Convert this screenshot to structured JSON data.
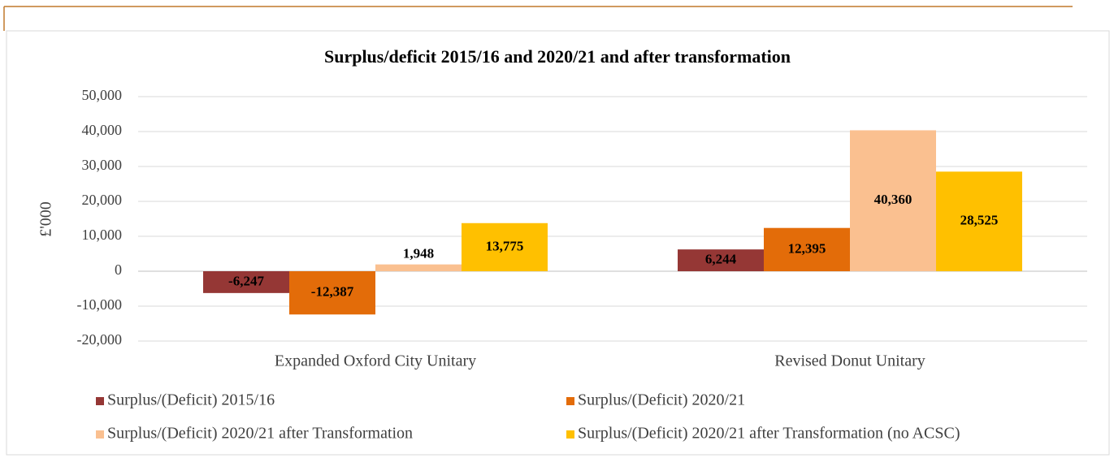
{
  "chart_data": {
    "type": "bar",
    "title": "Surplus/deficit 2015/16 and 2020/21 and after transformation",
    "ylabel": "£'000",
    "categories": [
      "Expanded Oxford City Unitary",
      "Revised Donut Unitary"
    ],
    "series": [
      {
        "name": "Surplus/(Deficit) 2015/16",
        "color": "#953735",
        "values": [
          -6247,
          6244
        ],
        "value_labels": [
          "-6,247",
          "6,244"
        ]
      },
      {
        "name": "Surplus/(Deficit) 2020/21",
        "color": "#e36c09",
        "values": [
          -12387,
          12395
        ],
        "value_labels": [
          "-12,387",
          "12,395"
        ]
      },
      {
        "name": "Surplus/(Deficit) 2020/21 after Transformation",
        "color": "#fac090",
        "values": [
          1948,
          40360
        ],
        "value_labels": [
          "1,948",
          "40,360"
        ]
      },
      {
        "name": "Surplus/(Deficit) 2020/21 after Transformation (no ACSC)",
        "color": "#ffc000",
        "values": [
          13775,
          28525
        ],
        "value_labels": [
          "13,775",
          "28,525"
        ]
      }
    ],
    "ylim": [
      -20000,
      50000
    ],
    "yticks": [
      {
        "value": -20000,
        "label": "-20,000"
      },
      {
        "value": -10000,
        "label": "-10,000"
      },
      0,
      {
        "value": 10000,
        "label": "10,000"
      },
      {
        "value": 20000,
        "label": "20,000"
      },
      {
        "value": 30000,
        "label": "30,000"
      },
      {
        "value": 40000,
        "label": "40,000"
      },
      {
        "value": 50000,
        "label": "50,000"
      }
    ],
    "grid": true,
    "legend": "bottom"
  }
}
